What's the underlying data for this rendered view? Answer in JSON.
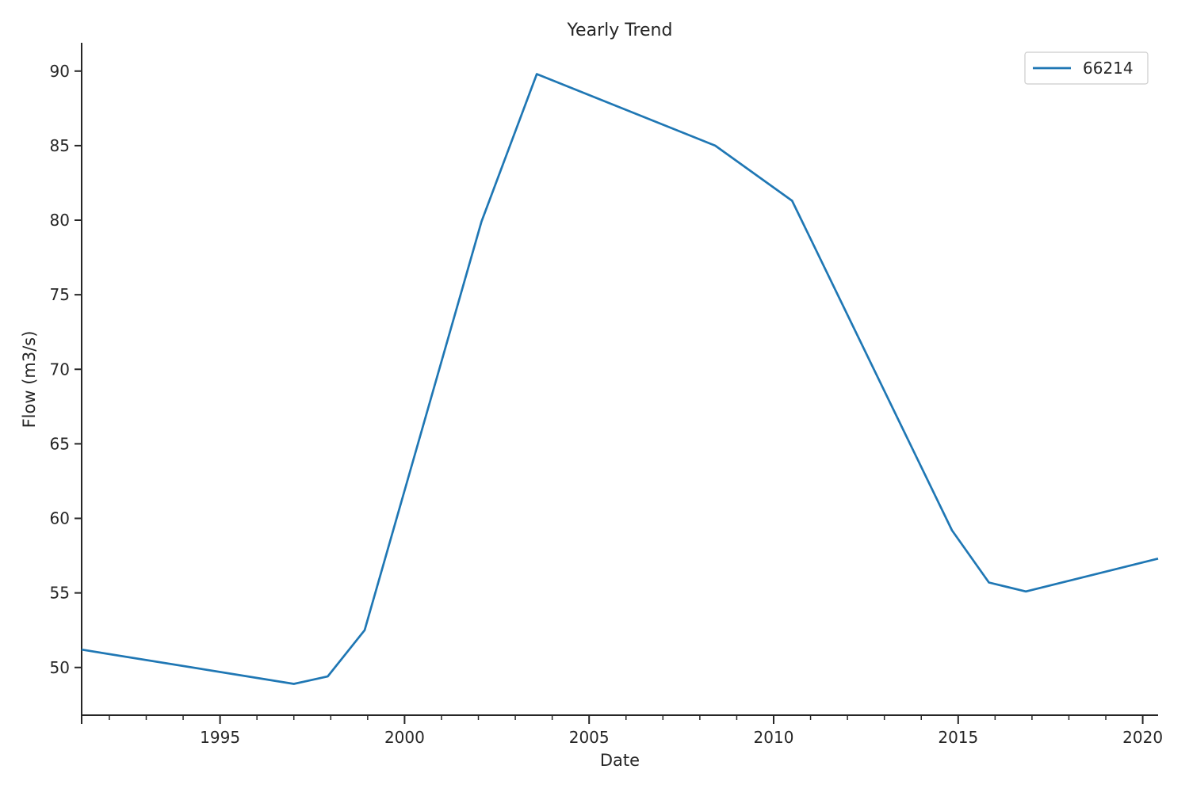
{
  "chart_data": {
    "type": "line",
    "title": "Yearly Trend",
    "xlabel": "Date",
    "ylabel": "Flow (m3/s)",
    "xlim": [
      "1991-04-01",
      "2020-06-01"
    ],
    "ylim": [
      46.8,
      91.9
    ],
    "x_ticks": [
      "1995",
      "2000",
      "2005",
      "2010",
      "2015",
      "2020"
    ],
    "y_ticks": [
      50,
      55,
      60,
      65,
      70,
      75,
      80,
      85,
      90
    ],
    "grid": false,
    "legend": "top-right",
    "colors": {
      "series": "#1f77b4",
      "axis": "#262626"
    },
    "series": [
      {
        "name": "66214",
        "x": [
          "1991-04-01",
          "1997-01-01",
          "1997-12-01",
          "1998-12-01",
          "2002-02-01",
          "2003-08-01",
          "2008-06-01",
          "2010-07-01",
          "2014-11-01",
          "2015-11-01",
          "2016-11-01",
          "2020-06-01"
        ],
        "y": [
          51.2,
          48.9,
          49.4,
          52.5,
          79.9,
          89.8,
          85.0,
          81.3,
          59.2,
          55.7,
          55.1,
          57.3
        ]
      }
    ]
  }
}
